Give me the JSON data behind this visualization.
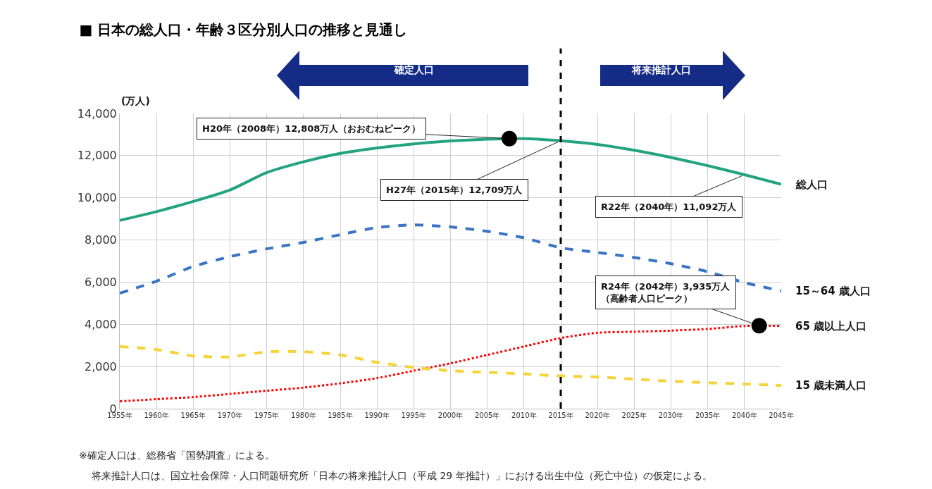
{
  "chart_data": {
    "type": "line",
    "title": "■ 日本の総人口・年齢３区分別人口の推移と見通し",
    "ylabel": "(万人)",
    "x": [
      1955,
      1960,
      1965,
      1970,
      1975,
      1980,
      1985,
      1990,
      1995,
      2000,
      2005,
      2010,
      2015,
      2020,
      2025,
      2030,
      2035,
      2040,
      2045
    ],
    "series": [
      {
        "name": "総人口",
        "color": "#23a37f",
        "line_style": "solid",
        "values": [
          8928,
          9342,
          9828,
          10372,
          11194,
          11706,
          12105,
          12361,
          12557,
          12693,
          12777,
          12806,
          12709,
          12532,
          12254,
          11913,
          11522,
          11092,
          10642
        ]
      },
      {
        "name": "15～64 歳人口",
        "color": "#3a75c4",
        "line_style": "dashed",
        "values": [
          5473,
          6047,
          6744,
          7212,
          7581,
          7884,
          8251,
          8590,
          8716,
          8622,
          8409,
          8103,
          7629,
          7406,
          7170,
          6875,
          6494,
          5978,
          5584
        ]
      },
      {
        "name": "65 歳以上人口",
        "color": "#ff0000",
        "line_style": "dotted",
        "values": [
          350,
          450,
          550,
          700,
          850,
          1000,
          1200,
          1450,
          1800,
          2150,
          2550,
          2950,
          3350,
          3600,
          3650,
          3700,
          3780,
          3920,
          3920
        ]
      },
      {
        "name": "15 歳未満人口",
        "color": "#f5d33a",
        "line_style": "dashed",
        "values": [
          2950,
          2800,
          2500,
          2450,
          2700,
          2700,
          2550,
          2200,
          1950,
          1800,
          1720,
          1650,
          1550,
          1500,
          1400,
          1300,
          1230,
          1170,
          1100
        ]
      },
      {
        "type": "scatter",
        "color": "#000000",
        "marker": "circle",
        "x": [
          2008,
          2042
        ],
        "values": [
          12808,
          3935
        ]
      }
    ],
    "xlim": [
      1955,
      2045
    ],
    "xticks": [
      {
        "value": 1955,
        "label": "1955年"
      },
      {
        "value": 1960,
        "label": "1960年"
      },
      {
        "value": 1965,
        "label": "1965年"
      },
      {
        "value": 1970,
        "label": "1970年"
      },
      {
        "value": 1975,
        "label": "1975年"
      },
      {
        "value": 1980,
        "label": "1980年"
      },
      {
        "value": 1985,
        "label": "1985年"
      },
      {
        "value": 1990,
        "label": "1990年"
      },
      {
        "value": 1995,
        "label": "1995年"
      },
      {
        "value": 2000,
        "label": "2000年"
      },
      {
        "value": 2005,
        "label": "2005年"
      },
      {
        "value": 2010,
        "label": "2010年"
      },
      {
        "value": 2015,
        "label": "2015年"
      },
      {
        "value": 2020,
        "label": "2020年"
      },
      {
        "value": 2025,
        "label": "2025年"
      },
      {
        "value": 2030,
        "label": "2030年"
      },
      {
        "value": 2035,
        "label": "2035年"
      },
      {
        "value": 2040,
        "label": "2040年"
      },
      {
        "value": 2045,
        "label": "2045年"
      }
    ],
    "ylim": [
      0,
      14000
    ],
    "yticks": [
      0,
      {
        "value": 2000,
        "label": "2,000"
      },
      {
        "value": 4000,
        "label": "4,000"
      },
      {
        "value": 6000,
        "label": "6,000"
      },
      {
        "value": 8000,
        "label": "8,000"
      },
      {
        "value": 10000,
        "label": "10,000"
      },
      {
        "value": 12000,
        "label": "12,000"
      },
      {
        "value": 14000,
        "label": "14,000"
      }
    ],
    "grid": true,
    "marker": "none",
    "ref_lines": [
      {
        "axis": "x",
        "value": 2015,
        "color": "#000000",
        "line_style": "dashed"
      }
    ],
    "annotations": [
      "確定人口",
      "将来推計人口",
      {
        "text": "H20年（2008年）12,808万人（おおむねピーク）",
        "x": 2008,
        "y": 12808
      },
      {
        "text": "H27年（2015年）12,709万人",
        "x": 2015,
        "y": 12709
      },
      {
        "text": "R22年（2040年）11,092万人",
        "x": 2040,
        "y": 11092
      },
      {
        "text": "R24年（2042年）3,935万人（高齢者人口ピーク）",
        "x": 2042,
        "y": 3935
      },
      "※確定人口は、総務省「国勢調査」による。",
      "将来推計人口は、国立社会保障・人口問題研究所「日本の将来推計人口（平成 29 年推計）」における出生中位（死亡中位）の仮定による。"
    ]
  }
}
